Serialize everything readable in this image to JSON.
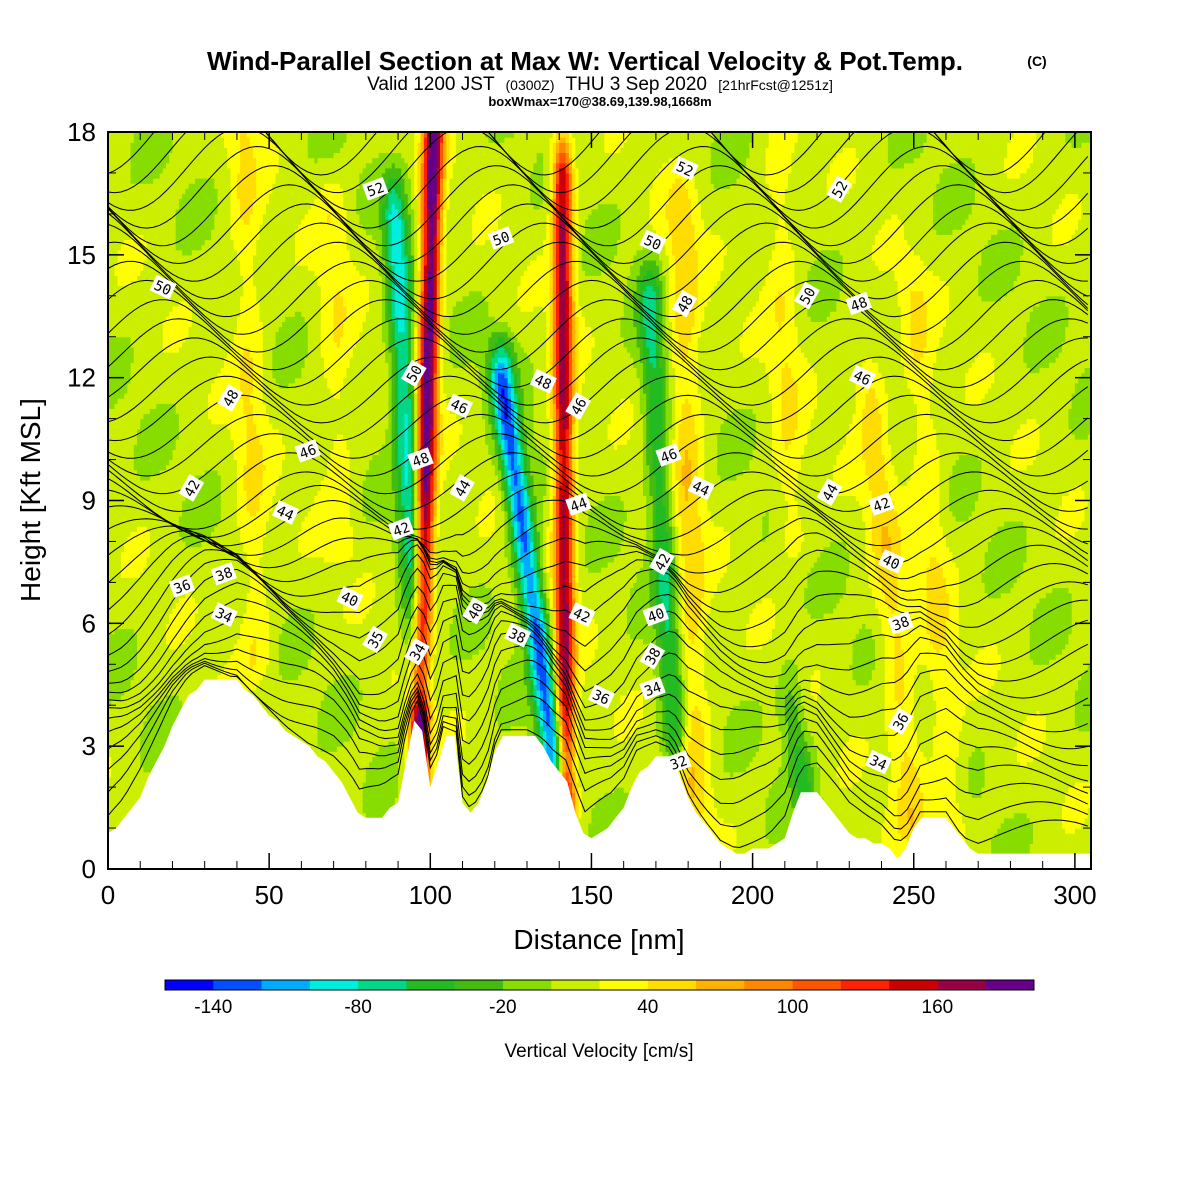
{
  "title": {
    "main": "Wind-Parallel Section at Max W: Vertical Velocity & Pot.Temp.",
    "main_mark": "(C)",
    "valid_prefix": "Valid 1200 JST",
    "valid_utc": "(0300Z)",
    "valid_date": "THU 3 Sep 2020",
    "valid_fcst": "[21hrFcst@1251z]",
    "box": "boxWmax=170@38.69,139.98,1668m"
  },
  "chart_data": {
    "type": "heatmap",
    "xlabel": "Distance [nm]",
    "ylabel": "Height [Kft MSL]",
    "xlim": [
      0,
      305
    ],
    "ylim": [
      0,
      18
    ],
    "x_ticks": [
      0,
      50,
      100,
      150,
      200,
      250,
      300
    ],
    "x_tick_labels": [
      "0",
      "50",
      "100",
      "150",
      "200",
      "250",
      "300"
    ],
    "y_ticks": [
      0,
      3,
      6,
      9,
      12,
      15,
      18
    ],
    "y_tick_labels": [
      "0",
      "3",
      "6",
      "9",
      "12",
      "15",
      "18"
    ],
    "colorbar": {
      "label": "Vertical Velocity [cm/s]",
      "levels": [
        -160,
        -140,
        -120,
        -100,
        -80,
        -60,
        -40,
        -20,
        0,
        20,
        40,
        60,
        80,
        100,
        120,
        140,
        160,
        180,
        200
      ],
      "colors": [
        "#0000ff",
        "#0050ff",
        "#00aaff",
        "#00eedd",
        "#00d888",
        "#22bb22",
        "#44bb11",
        "#88dd00",
        "#ccee00",
        "#ffff00",
        "#ffdd00",
        "#ffb300",
        "#ff8800",
        "#ff5500",
        "#ff2200",
        "#cc0000",
        "#990044",
        "#660088"
      ],
      "tick_values": [
        -140,
        -80,
        -20,
        40,
        100,
        160
      ],
      "tick_labels": [
        "-140",
        "-80",
        "-20",
        "40",
        "100",
        "160"
      ]
    },
    "terrain": [
      [
        0,
        0.9
      ],
      [
        5,
        1.2
      ],
      [
        10,
        1.8
      ],
      [
        15,
        2.6
      ],
      [
        20,
        3.5
      ],
      [
        25,
        4.2
      ],
      [
        30,
        4.6
      ],
      [
        40,
        4.6
      ],
      [
        45,
        4.2
      ],
      [
        50,
        3.8
      ],
      [
        55,
        3.4
      ],
      [
        60,
        3.1
      ],
      [
        65,
        2.8
      ],
      [
        70,
        2.4
      ],
      [
        75,
        1.8
      ],
      [
        78,
        1.3
      ],
      [
        85,
        1.3
      ],
      [
        90,
        1.6
      ],
      [
        92,
        2.5
      ],
      [
        95,
        3.6
      ],
      [
        97,
        3.6
      ],
      [
        99,
        2.5
      ],
      [
        100,
        2.0
      ],
      [
        102,
        2.4
      ],
      [
        104,
        3.2
      ],
      [
        108,
        3.2
      ],
      [
        110,
        1.6
      ],
      [
        112,
        1.4
      ],
      [
        115,
        1.6
      ],
      [
        118,
        2.2
      ],
      [
        121,
        3.3
      ],
      [
        131,
        3.3
      ],
      [
        135,
        3.0
      ],
      [
        138,
        2.6
      ],
      [
        142,
        2.2
      ],
      [
        145,
        1.4
      ],
      [
        148,
        0.7
      ],
      [
        152,
        0.9
      ],
      [
        156,
        1.1
      ],
      [
        160,
        1.5
      ],
      [
        164,
        2.3
      ],
      [
        170,
        2.7
      ],
      [
        175,
        2.7
      ],
      [
        180,
        1.7
      ],
      [
        185,
        1.1
      ],
      [
        190,
        0.6
      ],
      [
        195,
        0.4
      ],
      [
        205,
        0.5
      ],
      [
        210,
        0.8
      ],
      [
        215,
        1.9
      ],
      [
        220,
        1.9
      ],
      [
        225,
        1.4
      ],
      [
        230,
        0.9
      ],
      [
        235,
        0.7
      ],
      [
        240,
        0.6
      ],
      [
        245,
        0.3
      ],
      [
        248,
        0.6
      ],
      [
        252,
        1.3
      ],
      [
        260,
        1.3
      ],
      [
        265,
        0.7
      ],
      [
        270,
        0.4
      ],
      [
        290,
        0.4
      ],
      [
        300,
        0.4
      ],
      [
        305,
        0.4
      ]
    ],
    "updrafts": [
      {
        "x_base": 96,
        "x_top": 101,
        "peak": 190,
        "z_from": 1.0,
        "z_to": 18
      },
      {
        "x_base": 142,
        "x_top": 141,
        "peak": 160,
        "z_from": 1.5,
        "z_to": 17
      },
      {
        "x_base": 182,
        "x_top": 178,
        "peak": 45,
        "z_from": 1.5,
        "z_to": 16
      },
      {
        "x_base": 250,
        "x_top": 236,
        "peak": 40,
        "z_from": 1.0,
        "z_to": 12
      },
      {
        "x_base": 262,
        "x_top": 250,
        "peak": 30,
        "z_from": 1.0,
        "z_to": 14
      },
      {
        "x_base": 46,
        "x_top": 42,
        "peak": 30,
        "z_from": 5.0,
        "z_to": 18
      },
      {
        "x_base": 72,
        "x_top": 70,
        "peak": 25,
        "z_from": 8.0,
        "z_to": 16
      },
      {
        "x_base": 212,
        "x_top": 208,
        "peak": 28,
        "z_from": 8.0,
        "z_to": 17
      }
    ],
    "downdrafts": [
      {
        "x_base": 97,
        "x_top": 89,
        "peak": -95,
        "z_from": 4.5,
        "z_to": 16
      },
      {
        "x_base": 139,
        "x_top": 122,
        "peak": -135,
        "z_from": 2.5,
        "z_to": 12
      },
      {
        "x_base": 176,
        "x_top": 168,
        "peak": -70,
        "z_from": 3.0,
        "z_to": 14
      },
      {
        "x_base": 217,
        "x_top": 212,
        "peak": -50,
        "z_from": 1.5,
        "z_to": 4
      }
    ],
    "theta_contours": [
      {
        "label": "32",
        "x": 177,
        "y": 2.6
      },
      {
        "label": "34",
        "x": 36,
        "y": 6.2
      },
      {
        "label": "34",
        "x": 96,
        "y": 5.3
      },
      {
        "label": "34",
        "x": 169,
        "y": 4.4
      },
      {
        "label": "34",
        "x": 239,
        "y": 2.6
      },
      {
        "label": "35",
        "x": 83,
        "y": 5.6
      },
      {
        "label": "36",
        "x": 23,
        "y": 6.9
      },
      {
        "label": "36",
        "x": 153,
        "y": 4.2
      },
      {
        "label": "36",
        "x": 246,
        "y": 3.6
      },
      {
        "label": "38",
        "x": 36,
        "y": 7.2
      },
      {
        "label": "38",
        "x": 127,
        "y": 5.7
      },
      {
        "label": "38",
        "x": 169,
        "y": 5.2
      },
      {
        "label": "38",
        "x": 246,
        "y": 6.0
      },
      {
        "label": "40",
        "x": 75,
        "y": 6.6
      },
      {
        "label": "40",
        "x": 114,
        "y": 6.3
      },
      {
        "label": "40",
        "x": 170,
        "y": 6.2
      },
      {
        "label": "40",
        "x": 243,
        "y": 7.5
      },
      {
        "label": "42",
        "x": 26,
        "y": 9.3
      },
      {
        "label": "42",
        "x": 91,
        "y": 8.3
      },
      {
        "label": "42",
        "x": 147,
        "y": 6.2
      },
      {
        "label": "42",
        "x": 172,
        "y": 7.5
      },
      {
        "label": "42",
        "x": 240,
        "y": 8.9
      },
      {
        "label": "44",
        "x": 55,
        "y": 8.7
      },
      {
        "label": "44",
        "x": 110,
        "y": 9.3
      },
      {
        "label": "44",
        "x": 146,
        "y": 8.9
      },
      {
        "label": "44",
        "x": 184,
        "y": 9.3
      },
      {
        "label": "44",
        "x": 224,
        "y": 9.2
      },
      {
        "label": "46",
        "x": 62,
        "y": 10.2
      },
      {
        "label": "46",
        "x": 109,
        "y": 11.3
      },
      {
        "label": "46",
        "x": 146,
        "y": 11.3
      },
      {
        "label": "46",
        "x": 174,
        "y": 10.1
      },
      {
        "label": "46",
        "x": 234,
        "y": 12.0
      },
      {
        "label": "48",
        "x": 38,
        "y": 11.5
      },
      {
        "label": "48",
        "x": 97,
        "y": 10.0
      },
      {
        "label": "48",
        "x": 135,
        "y": 11.9
      },
      {
        "label": "48",
        "x": 179,
        "y": 13.8
      },
      {
        "label": "48",
        "x": 233,
        "y": 13.8
      },
      {
        "label": "50",
        "x": 17,
        "y": 14.2
      },
      {
        "label": "50",
        "x": 95,
        "y": 12.1
      },
      {
        "label": "50",
        "x": 122,
        "y": 15.4
      },
      {
        "label": "50",
        "x": 169,
        "y": 15.3
      },
      {
        "label": "50",
        "x": 217,
        "y": 14.0
      },
      {
        "label": "52",
        "x": 83,
        "y": 16.6
      },
      {
        "label": "52",
        "x": 179,
        "y": 17.1
      },
      {
        "label": "52",
        "x": 227,
        "y": 16.6
      }
    ]
  }
}
